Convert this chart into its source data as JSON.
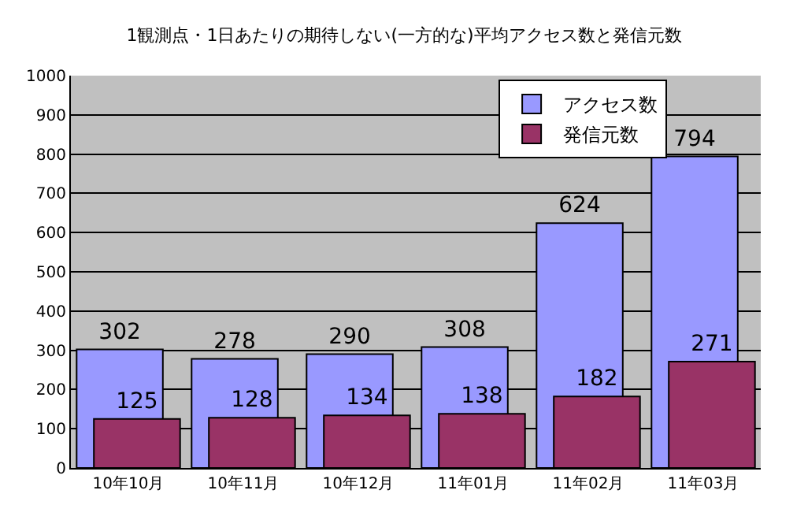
{
  "chart_data": {
    "type": "bar",
    "title": "1観測点・1日あたりの期待しない(一方的な)平均アクセス数と発信元数",
    "categories": [
      "10年10月",
      "10年11月",
      "10年12月",
      "11年01月",
      "11年02月",
      "11年03月"
    ],
    "series": [
      {
        "name": "アクセス数",
        "color": "#9999ff",
        "values": [
          302,
          278,
          290,
          308,
          624,
          794
        ]
      },
      {
        "name": "発信元数",
        "color": "#993366",
        "values": [
          125,
          128,
          134,
          138,
          182,
          271
        ]
      }
    ],
    "ylim": [
      0,
      1000
    ],
    "yticks": [
      0,
      100,
      200,
      300,
      400,
      500,
      600,
      700,
      800,
      900,
      1000
    ],
    "grid": "y",
    "legend": "top right",
    "data_labels": true
  }
}
